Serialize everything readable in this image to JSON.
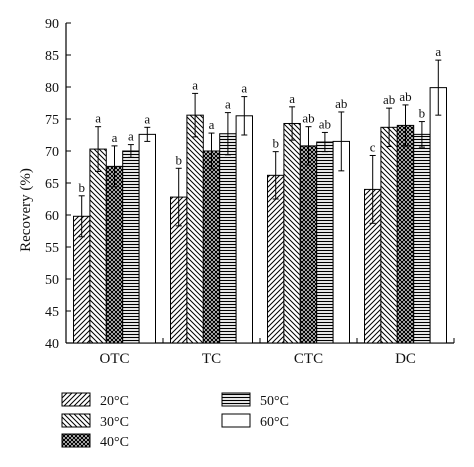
{
  "chart_data": {
    "type": "bar",
    "categories": [
      "OTC",
      "TC",
      "CTC",
      "DC"
    ],
    "ylabel": "Recovery (%)",
    "xlabel": "",
    "ylim": [
      40,
      90
    ],
    "yticks": [
      40,
      45,
      50,
      55,
      60,
      65,
      70,
      75,
      80,
      85,
      90
    ],
    "grid": false,
    "legend_position": "bottom",
    "series": [
      {
        "name": "20°C",
        "pattern": "diag-right",
        "values": [
          59.8,
          62.8,
          66.2,
          64.0
        ],
        "errors": [
          3.2,
          4.5,
          3.7,
          5.3
        ],
        "sig": [
          "b",
          "b",
          "b",
          "c"
        ]
      },
      {
        "name": "30°C",
        "pattern": "diag-left",
        "values": [
          70.3,
          75.6,
          74.3,
          73.7
        ],
        "errors": [
          3.5,
          3.4,
          2.6,
          3.0
        ],
        "sig": [
          "a",
          "a",
          "a",
          "ab"
        ]
      },
      {
        "name": "40°C",
        "pattern": "crosshatch",
        "values": [
          67.6,
          70.0,
          70.8,
          74.0
        ],
        "errors": [
          3.2,
          2.8,
          3.0,
          3.2
        ],
        "sig": [
          "a",
          "a",
          "ab",
          "ab"
        ]
      },
      {
        "name": "50°C",
        "pattern": "horizontal",
        "values": [
          70.0,
          72.7,
          71.4,
          72.6
        ],
        "errors": [
          1.0,
          3.3,
          1.5,
          2.0
        ],
        "sig": [
          "a",
          "a",
          "ab",
          "b"
        ]
      },
      {
        "name": "60°C",
        "pattern": "white",
        "values": [
          72.6,
          75.5,
          71.5,
          79.9
        ],
        "errors": [
          1.1,
          3.0,
          4.6,
          4.3
        ],
        "sig": [
          "a",
          "a",
          "ab",
          "a"
        ]
      }
    ]
  }
}
